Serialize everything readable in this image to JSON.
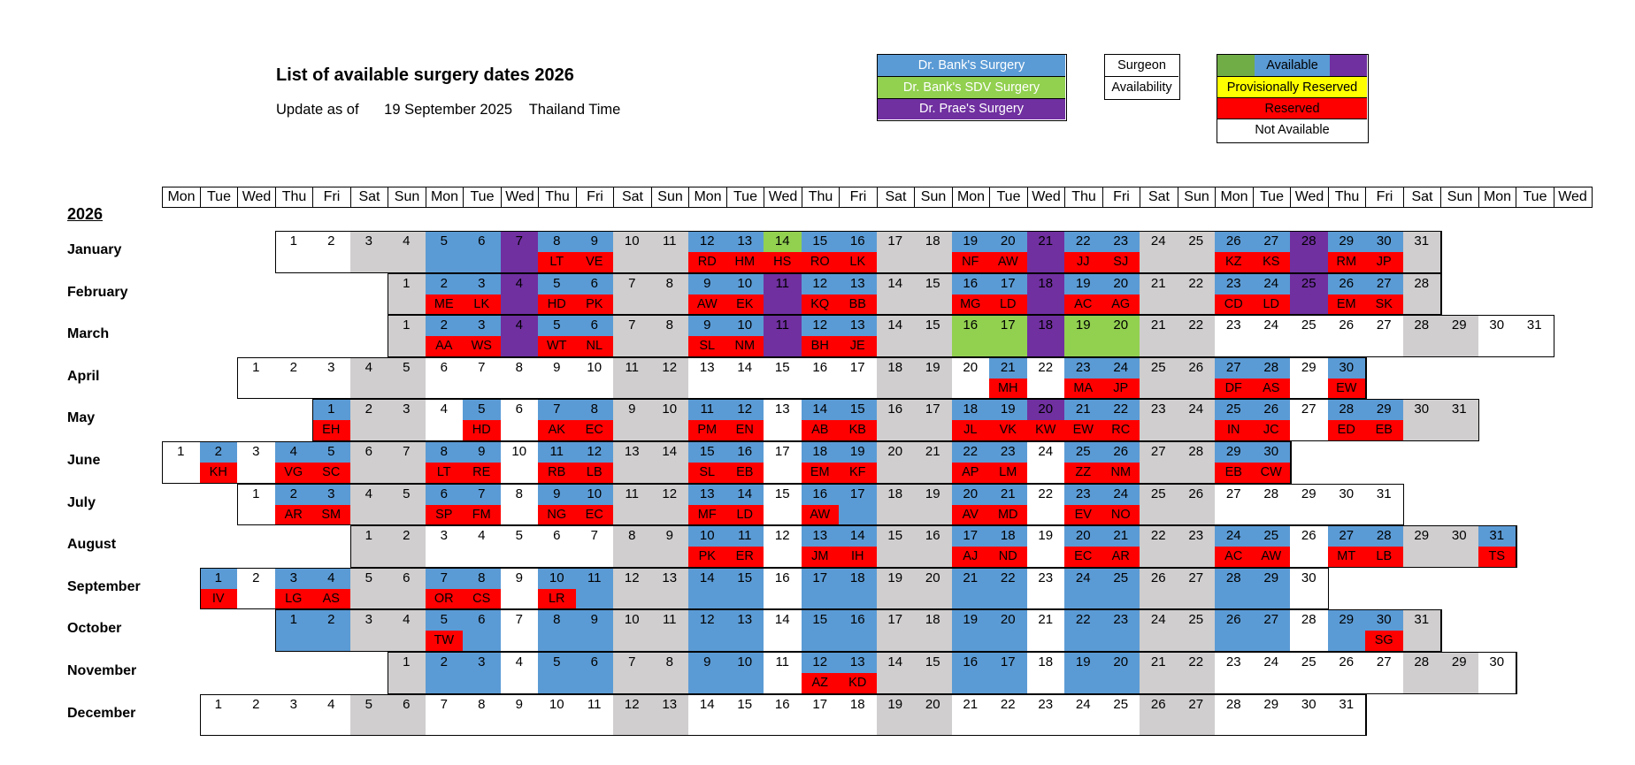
{
  "header": {
    "title": "List of available surgery dates 2026",
    "update_prefix": "Update as of",
    "update_date": "19 September 2025",
    "update_tz": "Thailand Time"
  },
  "legend": {
    "surgeons": [
      {
        "label": "Dr. Bank's Surgery",
        "color": "#5B9BD5",
        "text_color": "#ffffff"
      },
      {
        "label": "Dr. Bank's SDV Surgery",
        "color": "#92D050",
        "text_color": "#ffffff"
      },
      {
        "label": "Dr. Prae's Surgery",
        "color": "#7030A0",
        "text_color": "#ffffff"
      }
    ],
    "key_top": "Surgeon",
    "key_bottom": "Availability",
    "statuses": [
      {
        "label": "Available",
        "color": "#5B9BD5"
      },
      {
        "label": "Provisionally Reserved",
        "color": "#FFFF00"
      },
      {
        "label": "Reserved",
        "color": "#FF0000"
      },
      {
        "label": "Not Available",
        "color": "#ffffff"
      }
    ],
    "available_band_colors": [
      "#70AD47",
      "#5B9BD5",
      "#7030A0"
    ]
  },
  "colors": {
    "bank": "#5B9BD5",
    "sdv": "#92D050",
    "prae": "#7030A0",
    "reserved": "#FF0000",
    "weekend": "#D0CECE",
    "none": "#ffffff"
  },
  "weekday_headers": [
    "Mon",
    "Tue",
    "Wed",
    "Thu",
    "Fri",
    "Sat",
    "Sun",
    "Mon",
    "Tue",
    "Wed",
    "Thu",
    "Fri",
    "Sat",
    "Sun",
    "Mon",
    "Tue",
    "Wed",
    "Thu",
    "Fri",
    "Sat",
    "Sun",
    "Mon",
    "Tue",
    "Wed",
    "Thu",
    "Fri",
    "Sat",
    "Sun",
    "Mon",
    "Tue",
    "Wed",
    "Thu",
    "Fri",
    "Sat",
    "Sun",
    "Mon",
    "Tue",
    "Wed"
  ],
  "year": "2026",
  "months": [
    {
      "name": "January",
      "offset": 3,
      "days": 31,
      "bank": [
        5,
        6,
        8,
        9,
        12,
        13,
        15,
        16,
        19,
        20,
        22,
        23,
        26,
        27,
        29,
        30
      ],
      "sdv": [
        14
      ],
      "prae": [
        7,
        21,
        28
      ],
      "codes": {
        "8": "LT",
        "9": "VE",
        "12": "RD",
        "13": "HM",
        "14": "HS",
        "15": "RO",
        "16": "LK",
        "19": "NF",
        "20": "AW",
        "22": "JJ",
        "23": "SJ",
        "26": "KZ",
        "27": "KS",
        "29": "RM",
        "30": "JP"
      }
    },
    {
      "name": "February",
      "offset": 6,
      "days": 28,
      "bank": [
        2,
        3,
        5,
        6,
        9,
        10,
        12,
        13,
        16,
        17,
        19,
        20,
        23,
        24,
        26,
        27
      ],
      "sdv": [],
      "prae": [
        4,
        11,
        18,
        25
      ],
      "codes": {
        "2": "ME",
        "3": "LK",
        "5": "HD",
        "6": "PK",
        "9": "AW",
        "10": "EK",
        "12": "KQ",
        "13": "BB",
        "16": "MG",
        "17": "LD",
        "19": "AC",
        "20": "AG",
        "23": "CD",
        "24": "LD",
        "26": "EM",
        "27": "SK"
      }
    },
    {
      "name": "March",
      "offset": 6,
      "days": 31,
      "bank": [
        2,
        3,
        5,
        6,
        9,
        10,
        12,
        13
      ],
      "sdv": [
        16,
        17,
        19,
        20
      ],
      "prae": [
        4,
        11,
        18
      ],
      "codes": {
        "2": "AA",
        "3": "WS",
        "5": "WT",
        "6": "NL",
        "9": "SL",
        "10": "NM",
        "12": "BH",
        "13": "JE"
      }
    },
    {
      "name": "April",
      "offset": 2,
      "days": 30,
      "bank": [
        21,
        23,
        24,
        27,
        28,
        30
      ],
      "sdv": [],
      "prae": [],
      "codes": {
        "21": "MH",
        "23": "MA",
        "24": "JP",
        "27": "DF",
        "28": "AS",
        "30": "EW"
      }
    },
    {
      "name": "May",
      "offset": 4,
      "days": 31,
      "bank": [
        1,
        5,
        7,
        8,
        11,
        12,
        14,
        15,
        18,
        19,
        21,
        22,
        25,
        26,
        28,
        29
      ],
      "sdv": [],
      "prae": [
        20
      ],
      "codes": {
        "1": "EH",
        "5": "HD",
        "7": "AK",
        "8": "EC",
        "11": "PM",
        "12": "EN",
        "14": "AB",
        "15": "KB",
        "18": "JL",
        "19": "VK",
        "20": "KW",
        "21": "EW",
        "22": "RC",
        "25": "IN",
        "26": "JC",
        "28": "ED",
        "29": "EB"
      }
    },
    {
      "name": "June",
      "offset": 0,
      "days": 30,
      "bank": [
        2,
        4,
        5,
        8,
        9,
        11,
        12,
        15,
        16,
        18,
        19,
        22,
        23,
        25,
        26,
        29,
        30
      ],
      "sdv": [],
      "prae": [],
      "codes": {
        "2": "KH",
        "4": "VG",
        "5": "SC",
        "8": "LT",
        "9": "RE",
        "11": "RB",
        "12": "LB",
        "15": "SL",
        "16": "EB",
        "18": "EM",
        "19": "KF",
        "22": "AP",
        "23": "LM",
        "25": "ZZ",
        "26": "NM",
        "29": "EB",
        "30": "CW"
      }
    },
    {
      "name": "July",
      "offset": 2,
      "days": 31,
      "bank": [
        2,
        3,
        6,
        7,
        9,
        10,
        13,
        14,
        16,
        17,
        20,
        21,
        23,
        24
      ],
      "sdv": [],
      "prae": [],
      "codes": {
        "2": "AR",
        "3": "SM",
        "6": "SP",
        "7": "FM",
        "9": "NG",
        "10": "EC",
        "13": "MF",
        "14": "LD",
        "16": "AW",
        "20": "AV",
        "21": "MD",
        "23": "EV",
        "24": "NO"
      }
    },
    {
      "name": "August",
      "offset": 5,
      "days": 31,
      "bank": [
        10,
        11,
        13,
        14,
        17,
        18,
        20,
        21,
        24,
        25,
        27,
        28,
        31
      ],
      "sdv": [],
      "prae": [],
      "codes": {
        "10": "PK",
        "11": "ER",
        "13": "JM",
        "14": "IH",
        "17": "AJ",
        "18": "ND",
        "20": "EC",
        "21": "AR",
        "24": "AC",
        "25": "AW",
        "27": "MT",
        "28": "LB",
        "31": "TS"
      }
    },
    {
      "name": "September",
      "offset": 1,
      "days": 30,
      "bank": [
        1,
        3,
        4,
        7,
        8,
        10,
        11,
        14,
        15,
        17,
        18,
        21,
        22,
        24,
        25,
        28,
        29
      ],
      "sdv": [],
      "prae": [],
      "codes": {
        "1": "IV",
        "3": "LG",
        "4": "AS",
        "7": "OR",
        "8": "CS",
        "10": "LR"
      }
    },
    {
      "name": "October",
      "offset": 3,
      "days": 31,
      "bank": [
        1,
        2,
        5,
        6,
        8,
        9,
        12,
        13,
        15,
        16,
        19,
        20,
        22,
        23,
        26,
        27,
        29,
        30
      ],
      "sdv": [],
      "prae": [],
      "codes": {
        "5": "TW",
        "30": "SG"
      }
    },
    {
      "name": "November",
      "offset": 6,
      "days": 30,
      "bank": [
        2,
        3,
        5,
        6,
        9,
        10,
        12,
        13,
        16,
        17,
        19,
        20
      ],
      "sdv": [],
      "prae": [],
      "codes": {
        "12": "AZ",
        "13": "KD"
      }
    },
    {
      "name": "December",
      "offset": 1,
      "days": 31,
      "bank": [],
      "sdv": [],
      "prae": [],
      "codes": {}
    }
  ]
}
